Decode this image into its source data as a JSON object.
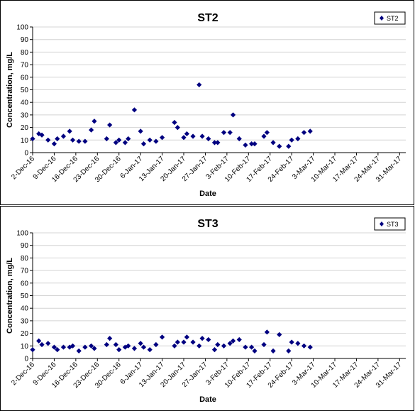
{
  "chart_data": [
    {
      "type": "scatter",
      "title": "ST2",
      "xlabel": "Date",
      "ylabel": "Concentration, mg/L",
      "ylim": [
        0,
        100
      ],
      "yticks": [
        "0",
        "10",
        "20",
        "30",
        "40",
        "50",
        "60",
        "70",
        "80",
        "90",
        "100"
      ],
      "xlim": [
        "2016-12-02",
        "2017-04-02"
      ],
      "xticks": [
        {
          "date": "2016-12-02",
          "label": "2-Dec-16"
        },
        {
          "date": "2016-12-09",
          "label": "9-Dec-16"
        },
        {
          "date": "2016-12-16",
          "label": "16-Dec-16"
        },
        {
          "date": "2016-12-23",
          "label": "23-Dec-16"
        },
        {
          "date": "2016-12-30",
          "label": "30-Dec-16"
        },
        {
          "date": "2017-01-06",
          "label": "6-Jan-17"
        },
        {
          "date": "2017-01-13",
          "label": "13-Jan-17"
        },
        {
          "date": "2017-01-20",
          "label": "20-Jan-17"
        },
        {
          "date": "2017-01-27",
          "label": "27-Jan-17"
        },
        {
          "date": "2017-02-03",
          "label": "3-Feb-17"
        },
        {
          "date": "2017-02-10",
          "label": "10-Feb-17"
        },
        {
          "date": "2017-02-17",
          "label": "17-Feb-17"
        },
        {
          "date": "2017-02-24",
          "label": "24-Feb-17"
        },
        {
          "date": "2017-03-03",
          "label": "3-Mar-17"
        },
        {
          "date": "2017-03-10",
          "label": "10-Mar-17"
        },
        {
          "date": "2017-03-17",
          "label": "17-Mar-17"
        },
        {
          "date": "2017-03-24",
          "label": "24-Mar-17"
        },
        {
          "date": "2017-03-31",
          "label": "31-Mar-17"
        }
      ],
      "gridlines": "horizontal",
      "legend": {
        "entries": [
          "ST2"
        ],
        "position": "top-right"
      },
      "marker_color": "#000080",
      "series": [
        {
          "name": "ST2",
          "points": [
            [
              "2016-12-02",
              11
            ],
            [
              "2016-12-04",
              15
            ],
            [
              "2016-12-05",
              14
            ],
            [
              "2016-12-07",
              10
            ],
            [
              "2016-12-09",
              7
            ],
            [
              "2016-12-10",
              11
            ],
            [
              "2016-12-12",
              13
            ],
            [
              "2016-12-14",
              17
            ],
            [
              "2016-12-15",
              10
            ],
            [
              "2016-12-17",
              9
            ],
            [
              "2016-12-19",
              9
            ],
            [
              "2016-12-21",
              18
            ],
            [
              "2016-12-22",
              25
            ],
            [
              "2016-12-26",
              11
            ],
            [
              "2016-12-27",
              22
            ],
            [
              "2016-12-29",
              8
            ],
            [
              "2016-12-30",
              10
            ],
            [
              "2017-01-01",
              8
            ],
            [
              "2017-01-02",
              11
            ],
            [
              "2017-01-04",
              34
            ],
            [
              "2017-01-06",
              17
            ],
            [
              "2017-01-07",
              7
            ],
            [
              "2017-01-09",
              10
            ],
            [
              "2017-01-11",
              9
            ],
            [
              "2017-01-13",
              12
            ],
            [
              "2017-01-17",
              24
            ],
            [
              "2017-01-18",
              20
            ],
            [
              "2017-01-20",
              12
            ],
            [
              "2017-01-21",
              15
            ],
            [
              "2017-01-23",
              13
            ],
            [
              "2017-01-25",
              54
            ],
            [
              "2017-01-26",
              13
            ],
            [
              "2017-01-28",
              11
            ],
            [
              "2017-01-30",
              8
            ],
            [
              "2017-01-31",
              8
            ],
            [
              "2017-02-02",
              16
            ],
            [
              "2017-02-04",
              16
            ],
            [
              "2017-02-05",
              30
            ],
            [
              "2017-02-07",
              11
            ],
            [
              "2017-02-09",
              6
            ],
            [
              "2017-02-11",
              7
            ],
            [
              "2017-02-12",
              7
            ],
            [
              "2017-02-15",
              13
            ],
            [
              "2017-02-16",
              16
            ],
            [
              "2017-02-18",
              8
            ],
            [
              "2017-02-20",
              5
            ],
            [
              "2017-02-23",
              5
            ],
            [
              "2017-02-24",
              10
            ],
            [
              "2017-02-26",
              11
            ],
            [
              "2017-02-28",
              16
            ],
            [
              "2017-03-02",
              17
            ]
          ]
        }
      ]
    },
    {
      "type": "scatter",
      "title": "ST3",
      "xlabel": "Date",
      "ylabel": "Concentration, mg/L",
      "ylim": [
        0,
        100
      ],
      "yticks": [
        "0",
        "10",
        "20",
        "30",
        "40",
        "50",
        "60",
        "70",
        "80",
        "90",
        "100"
      ],
      "xlim": [
        "2016-12-02",
        "2017-04-02"
      ],
      "xticks": [
        {
          "date": "2016-12-02",
          "label": "2-Dec-16"
        },
        {
          "date": "2016-12-09",
          "label": "9-Dec-16"
        },
        {
          "date": "2016-12-16",
          "label": "16-Dec-16"
        },
        {
          "date": "2016-12-23",
          "label": "23-Dec-16"
        },
        {
          "date": "2016-12-30",
          "label": "30-Dec-16"
        },
        {
          "date": "2017-01-06",
          "label": "6-Jan-17"
        },
        {
          "date": "2017-01-13",
          "label": "13-Jan-17"
        },
        {
          "date": "2017-01-20",
          "label": "20-Jan-17"
        },
        {
          "date": "2017-01-27",
          "label": "27-Jan-17"
        },
        {
          "date": "2017-02-03",
          "label": "3-Feb-17"
        },
        {
          "date": "2017-02-10",
          "label": "10-Feb-17"
        },
        {
          "date": "2017-02-17",
          "label": "17-Feb-17"
        },
        {
          "date": "2017-02-24",
          "label": "24-Feb-17"
        },
        {
          "date": "2017-03-03",
          "label": "3-Mar-17"
        },
        {
          "date": "2017-03-10",
          "label": "10-Mar-17"
        },
        {
          "date": "2017-03-17",
          "label": "17-Mar-17"
        },
        {
          "date": "2017-03-24",
          "label": "24-Mar-17"
        },
        {
          "date": "2017-03-31",
          "label": "31-Mar-17"
        }
      ],
      "gridlines": "horizontal",
      "legend": {
        "entries": [
          "ST3"
        ],
        "position": "top-right"
      },
      "marker_color": "#000080",
      "series": [
        {
          "name": "ST3",
          "points": [
            [
              "2016-12-02",
              7
            ],
            [
              "2016-12-04",
              14
            ],
            [
              "2016-12-05",
              11
            ],
            [
              "2016-12-07",
              12
            ],
            [
              "2016-12-09",
              9
            ],
            [
              "2016-12-10",
              7
            ],
            [
              "2016-12-12",
              9
            ],
            [
              "2016-12-14",
              9
            ],
            [
              "2016-12-15",
              10
            ],
            [
              "2016-12-17",
              6
            ],
            [
              "2016-12-19",
              9
            ],
            [
              "2016-12-21",
              10
            ],
            [
              "2016-12-22",
              8
            ],
            [
              "2016-12-26",
              11
            ],
            [
              "2016-12-27",
              16
            ],
            [
              "2016-12-29",
              11
            ],
            [
              "2016-12-30",
              7
            ],
            [
              "2017-01-01",
              9
            ],
            [
              "2017-01-02",
              10
            ],
            [
              "2017-01-04",
              8
            ],
            [
              "2017-01-06",
              12
            ],
            [
              "2017-01-07",
              9
            ],
            [
              "2017-01-09",
              7
            ],
            [
              "2017-01-11",
              11
            ],
            [
              "2017-01-13",
              17
            ],
            [
              "2017-01-17",
              10
            ],
            [
              "2017-01-18",
              13
            ],
            [
              "2017-01-20",
              13
            ],
            [
              "2017-01-21",
              17
            ],
            [
              "2017-01-23",
              13
            ],
            [
              "2017-01-25",
              10
            ],
            [
              "2017-01-26",
              16
            ],
            [
              "2017-01-28",
              15
            ],
            [
              "2017-01-30",
              7
            ],
            [
              "2017-01-31",
              11
            ],
            [
              "2017-02-02",
              10
            ],
            [
              "2017-02-04",
              12
            ],
            [
              "2017-02-05",
              14
            ],
            [
              "2017-02-07",
              15
            ],
            [
              "2017-02-09",
              9
            ],
            [
              "2017-02-11",
              9
            ],
            [
              "2017-02-12",
              6
            ],
            [
              "2017-02-15",
              11
            ],
            [
              "2017-02-16",
              21
            ],
            [
              "2017-02-18",
              6
            ],
            [
              "2017-02-20",
              19
            ],
            [
              "2017-02-23",
              6
            ],
            [
              "2017-02-24",
              13
            ],
            [
              "2017-02-26",
              12
            ],
            [
              "2017-02-28",
              10
            ],
            [
              "2017-03-02",
              9
            ]
          ]
        }
      ]
    }
  ]
}
